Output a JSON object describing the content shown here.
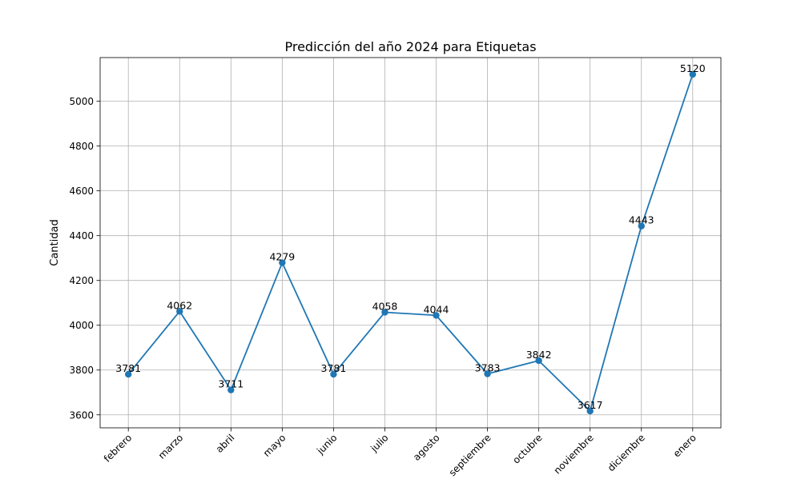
{
  "chart_data": {
    "type": "line",
    "title": "Predicción del año 2024 para Etiquetas",
    "xlabel": "",
    "ylabel": "Cantidad",
    "categories": [
      "febrero",
      "marzo",
      "abril",
      "mayo",
      "junio",
      "julio",
      "agosto",
      "septiembre",
      "octubre",
      "noviembre",
      "diciembre",
      "enero"
    ],
    "series": [
      {
        "values": [
          3781,
          4062,
          3711,
          4279,
          3781,
          4058,
          4044,
          3783,
          3842,
          3617,
          4443,
          5120
        ],
        "color": "#1f77b4"
      }
    ],
    "data_labels": [
      "3781",
      "4062",
      "3711",
      "4279",
      "3781",
      "4058",
      "4044",
      "3783",
      "3842",
      "3617",
      "4443",
      "5120"
    ],
    "yticks": [
      3600,
      3800,
      4000,
      4200,
      4400,
      4600,
      4800,
      5000
    ],
    "ylim": [
      3542,
      5195
    ],
    "grid": true,
    "colors": {
      "line": "#1f77b4",
      "grid": "#b0b0b0",
      "axes": "#000000"
    }
  }
}
